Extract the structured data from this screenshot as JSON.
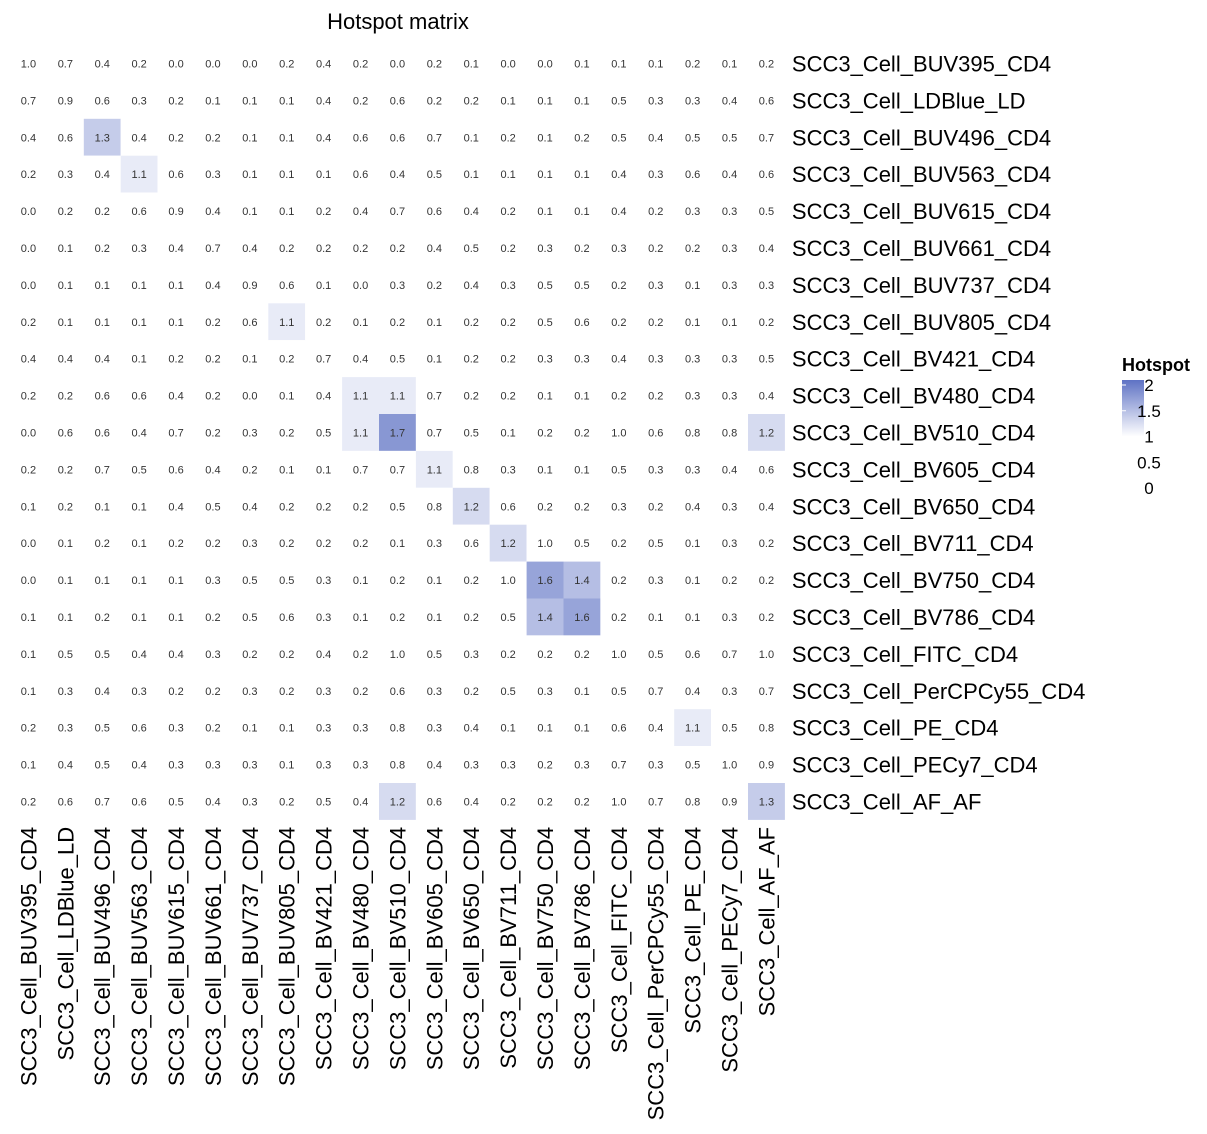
{
  "chart_data": {
    "type": "heatmap",
    "title": "Hotspot matrix",
    "rows": [
      "SCC3_Cell_BUV395_CD4",
      "SCC3_Cell_LDBlue_LD",
      "SCC3_Cell_BUV496_CD4",
      "SCC3_Cell_BUV563_CD4",
      "SCC3_Cell_BUV615_CD4",
      "SCC3_Cell_BUV661_CD4",
      "SCC3_Cell_BUV737_CD4",
      "SCC3_Cell_BUV805_CD4",
      "SCC3_Cell_BV421_CD4",
      "SCC3_Cell_BV480_CD4",
      "SCC3_Cell_BV510_CD4",
      "SCC3_Cell_BV605_CD4",
      "SCC3_Cell_BV650_CD4",
      "SCC3_Cell_BV711_CD4",
      "SCC3_Cell_BV750_CD4",
      "SCC3_Cell_BV786_CD4",
      "SCC3_Cell_FITC_CD4",
      "SCC3_Cell_PerCPCy55_CD4",
      "SCC3_Cell_PE_CD4",
      "SCC3_Cell_PECy7_CD4",
      "SCC3_Cell_AF_AF"
    ],
    "columns": [
      "SCC3_Cell_BUV395_CD4",
      "SCC3_Cell_LDBlue_LD",
      "SCC3_Cell_BUV496_CD4",
      "SCC3_Cell_BUV563_CD4",
      "SCC3_Cell_BUV615_CD4",
      "SCC3_Cell_BUV661_CD4",
      "SCC3_Cell_BUV737_CD4",
      "SCC3_Cell_BUV805_CD4",
      "SCC3_Cell_BV421_CD4",
      "SCC3_Cell_BV480_CD4",
      "SCC3_Cell_BV510_CD4",
      "SCC3_Cell_BV605_CD4",
      "SCC3_Cell_BV650_CD4",
      "SCC3_Cell_BV711_CD4",
      "SCC3_Cell_BV750_CD4",
      "SCC3_Cell_BV786_CD4",
      "SCC3_Cell_FITC_CD4",
      "SCC3_Cell_PerCPCy55_CD4",
      "SCC3_Cell_PE_CD4",
      "SCC3_Cell_PECy7_CD4",
      "SCC3_Cell_AF_AF"
    ],
    "values": [
      [
        1.0,
        0.7,
        0.4,
        0.2,
        0.0,
        0.0,
        0.0,
        0.2,
        0.4,
        0.2,
        0.0,
        0.2,
        0.1,
        0.0,
        0.0,
        0.1,
        0.1,
        0.1,
        0.2,
        0.1,
        0.2
      ],
      [
        0.7,
        0.9,
        0.6,
        0.3,
        0.2,
        0.1,
        0.1,
        0.1,
        0.4,
        0.2,
        0.6,
        0.2,
        0.2,
        0.1,
        0.1,
        0.1,
        0.5,
        0.3,
        0.3,
        0.4,
        0.6
      ],
      [
        0.4,
        0.6,
        1.3,
        0.4,
        0.2,
        0.2,
        0.1,
        0.1,
        0.4,
        0.6,
        0.6,
        0.7,
        0.1,
        0.2,
        0.1,
        0.2,
        0.5,
        0.4,
        0.5,
        0.5,
        0.7
      ],
      [
        0.2,
        0.3,
        0.4,
        1.1,
        0.6,
        0.3,
        0.1,
        0.1,
        0.1,
        0.6,
        0.4,
        0.5,
        0.1,
        0.1,
        0.1,
        0.1,
        0.4,
        0.3,
        0.6,
        0.4,
        0.6
      ],
      [
        0.0,
        0.2,
        0.2,
        0.6,
        0.9,
        0.4,
        0.1,
        0.1,
        0.2,
        0.4,
        0.7,
        0.6,
        0.4,
        0.2,
        0.1,
        0.1,
        0.4,
        0.2,
        0.3,
        0.3,
        0.5
      ],
      [
        0.0,
        0.1,
        0.2,
        0.3,
        0.4,
        0.7,
        0.4,
        0.2,
        0.2,
        0.2,
        0.2,
        0.4,
        0.5,
        0.2,
        0.3,
        0.2,
        0.3,
        0.2,
        0.2,
        0.3,
        0.4
      ],
      [
        0.0,
        0.1,
        0.1,
        0.1,
        0.1,
        0.4,
        0.9,
        0.6,
        0.1,
        0.0,
        0.3,
        0.2,
        0.4,
        0.3,
        0.5,
        0.5,
        0.2,
        0.3,
        0.1,
        0.3,
        0.3
      ],
      [
        0.2,
        0.1,
        0.1,
        0.1,
        0.1,
        0.2,
        0.6,
        1.1,
        0.2,
        0.1,
        0.2,
        0.1,
        0.2,
        0.2,
        0.5,
        0.6,
        0.2,
        0.2,
        0.1,
        0.1,
        0.2
      ],
      [
        0.4,
        0.4,
        0.4,
        0.1,
        0.2,
        0.2,
        0.1,
        0.2,
        0.7,
        0.4,
        0.5,
        0.1,
        0.2,
        0.2,
        0.3,
        0.3,
        0.4,
        0.3,
        0.3,
        0.3,
        0.5
      ],
      [
        0.2,
        0.2,
        0.6,
        0.6,
        0.4,
        0.2,
        0.0,
        0.1,
        0.4,
        1.1,
        1.1,
        0.7,
        0.2,
        0.2,
        0.1,
        0.1,
        0.2,
        0.2,
        0.3,
        0.3,
        0.4
      ],
      [
        0.0,
        0.6,
        0.6,
        0.4,
        0.7,
        0.2,
        0.3,
        0.2,
        0.5,
        1.1,
        1.7,
        0.7,
        0.5,
        0.1,
        0.2,
        0.2,
        1.0,
        0.6,
        0.8,
        0.8,
        1.2
      ],
      [
        0.2,
        0.2,
        0.7,
        0.5,
        0.6,
        0.4,
        0.2,
        0.1,
        0.1,
        0.7,
        0.7,
        1.1,
        0.8,
        0.3,
        0.1,
        0.1,
        0.5,
        0.3,
        0.3,
        0.4,
        0.6
      ],
      [
        0.1,
        0.2,
        0.1,
        0.1,
        0.4,
        0.5,
        0.4,
        0.2,
        0.2,
        0.2,
        0.5,
        0.8,
        1.2,
        0.6,
        0.2,
        0.2,
        0.3,
        0.2,
        0.4,
        0.3,
        0.4
      ],
      [
        0.0,
        0.1,
        0.2,
        0.1,
        0.2,
        0.2,
        0.3,
        0.2,
        0.2,
        0.2,
        0.1,
        0.3,
        0.6,
        1.2,
        1.0,
        0.5,
        0.2,
        0.5,
        0.1,
        0.3,
        0.2
      ],
      [
        0.0,
        0.1,
        0.1,
        0.1,
        0.1,
        0.3,
        0.5,
        0.5,
        0.3,
        0.1,
        0.2,
        0.1,
        0.2,
        1.0,
        1.6,
        1.4,
        0.2,
        0.3,
        0.1,
        0.2,
        0.2
      ],
      [
        0.1,
        0.1,
        0.2,
        0.1,
        0.1,
        0.2,
        0.5,
        0.6,
        0.3,
        0.1,
        0.2,
        0.1,
        0.2,
        0.5,
        1.4,
        1.6,
        0.2,
        0.1,
        0.1,
        0.3,
        0.2
      ],
      [
        0.1,
        0.5,
        0.5,
        0.4,
        0.4,
        0.3,
        0.2,
        0.2,
        0.4,
        0.2,
        1.0,
        0.5,
        0.3,
        0.2,
        0.2,
        0.2,
        1.0,
        0.5,
        0.6,
        0.7,
        1.0
      ],
      [
        0.1,
        0.3,
        0.4,
        0.3,
        0.2,
        0.2,
        0.3,
        0.2,
        0.3,
        0.2,
        0.6,
        0.3,
        0.2,
        0.5,
        0.3,
        0.1,
        0.5,
        0.7,
        0.4,
        0.3,
        0.7
      ],
      [
        0.2,
        0.3,
        0.5,
        0.6,
        0.3,
        0.2,
        0.1,
        0.1,
        0.3,
        0.3,
        0.8,
        0.3,
        0.4,
        0.1,
        0.1,
        0.1,
        0.6,
        0.4,
        1.1,
        0.5,
        0.8
      ],
      [
        0.1,
        0.4,
        0.5,
        0.4,
        0.3,
        0.3,
        0.3,
        0.1,
        0.3,
        0.3,
        0.8,
        0.4,
        0.3,
        0.3,
        0.2,
        0.3,
        0.7,
        0.3,
        0.5,
        1.0,
        0.9
      ],
      [
        0.2,
        0.6,
        0.7,
        0.6,
        0.5,
        0.4,
        0.3,
        0.2,
        0.5,
        0.4,
        1.2,
        0.6,
        0.4,
        0.2,
        0.2,
        0.2,
        1.0,
        0.7,
        0.8,
        0.9,
        1.3
      ]
    ],
    "color_scale": {
      "threshold": 1.0,
      "max": 2.0,
      "low_color": "#ffffff",
      "high_color": "#5e72c4"
    },
    "legend": {
      "title": "Hotspot",
      "labels": [
        "2",
        "1.5",
        "1",
        "0.5",
        "0"
      ],
      "placement": "right"
    }
  }
}
